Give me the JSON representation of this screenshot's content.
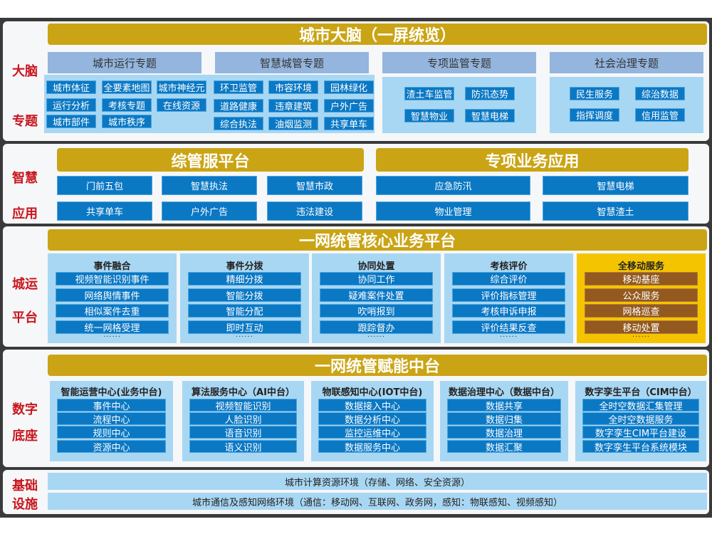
{
  "colors": {
    "gold": "#caa414",
    "blue": "#0b78c4",
    "light": "#a8d7f3",
    "header": "#94b5de",
    "yellow": "#f5c400",
    "brown": "#93591f",
    "label_red": "#c8161d"
  },
  "brain": {
    "side": [
      "大脑",
      "专题"
    ],
    "title": "城市大脑（一屏统览）",
    "topics": [
      {
        "header": "城市运行专题",
        "items": [
          "城市体征",
          "全要素地图",
          "城市神经元",
          "运行分析",
          "考核专题",
          "在线资源",
          "城市部件",
          "城市秩序"
        ]
      },
      {
        "header": "智慧城管专题",
        "items": [
          "环卫监管",
          "市容环境",
          "园林绿化",
          "道路健康",
          "违章建筑",
          "户外广告",
          "综合执法",
          "油烟监测",
          "共享单车"
        ]
      },
      {
        "header": "专项监管专题",
        "items": [
          "渣土车监管",
          "防汛态势",
          "智慧物业",
          "智慧电梯"
        ]
      },
      {
        "header": "社会治理专题",
        "items": [
          "民生服务",
          "综治数据",
          "指挥调度",
          "信用监管"
        ]
      }
    ]
  },
  "apps": {
    "side": [
      "智慧",
      "应用"
    ],
    "left": {
      "title": "综管服平台",
      "items": [
        "门前五包",
        "智慧执法",
        "智慧市政",
        "共享单车",
        "户外广告",
        "违法建设"
      ]
    },
    "right": {
      "title": "专项业务应用",
      "items": [
        "应急防汛",
        "智慧电梯",
        "物业管理",
        "智慧渣土"
      ]
    }
  },
  "core": {
    "side": [
      "城运",
      "平台"
    ],
    "title": "一网统管核心业务平台",
    "more": "······",
    "columns": [
      {
        "title": "事件融合",
        "items": [
          "视频智能识别事件",
          "网络舆情事件",
          "相似案件去重",
          "统一网格受理"
        ]
      },
      {
        "title": "事件分拨",
        "items": [
          "精细分拨",
          "智能分拨",
          "智能分配",
          "即时互动"
        ]
      },
      {
        "title": "协同处置",
        "items": [
          "协同工作",
          "疑难案件处置",
          "吹哨报到",
          "跟踪督办"
        ]
      },
      {
        "title": "考核评价",
        "items": [
          "综合评价",
          "评价指标管理",
          "考核申诉申报",
          "评价结果反查"
        ]
      },
      {
        "title": "全移动服务",
        "items": [
          "移动基座",
          "公众服务",
          "网格巡查",
          "移动处置"
        ]
      }
    ]
  },
  "enable": {
    "side": [
      "数字",
      "底座"
    ],
    "title": "一网统管赋能中台",
    "columns": [
      {
        "title": "智能运营中心(业务中台)",
        "items": [
          "事件中心",
          "流程中心",
          "规则中心",
          "资源中心"
        ]
      },
      {
        "title": "算法服务中心（AI中台）",
        "items": [
          "视频智能识别",
          "人脸识别",
          "语音识别",
          "语义识别"
        ]
      },
      {
        "title": "物联感知中心(IOT中台)",
        "items": [
          "数据接入中心",
          "数据分析中心",
          "监控运维中心",
          "数据服务中心"
        ]
      },
      {
        "title": "数据治理中心（数据中台）",
        "items": [
          "数据共享",
          "数据归集",
          "数据治理",
          "数据汇聚"
        ]
      },
      {
        "title": "数字孪生平台（CIM中台）",
        "items": [
          "全时空数据汇集管理",
          "全时空数据服务",
          "数字孪生CIM平台建设",
          "数字孪生平台系统模块"
        ]
      }
    ]
  },
  "infra": {
    "side": [
      "基础",
      "设施"
    ],
    "rows": [
      "城市计算资源环境（存储、网络、安全资源）",
      "城市通信及感知网络环境（通信：移动网、互联网、政务网，感知：物联感知、视频感知）"
    ]
  }
}
